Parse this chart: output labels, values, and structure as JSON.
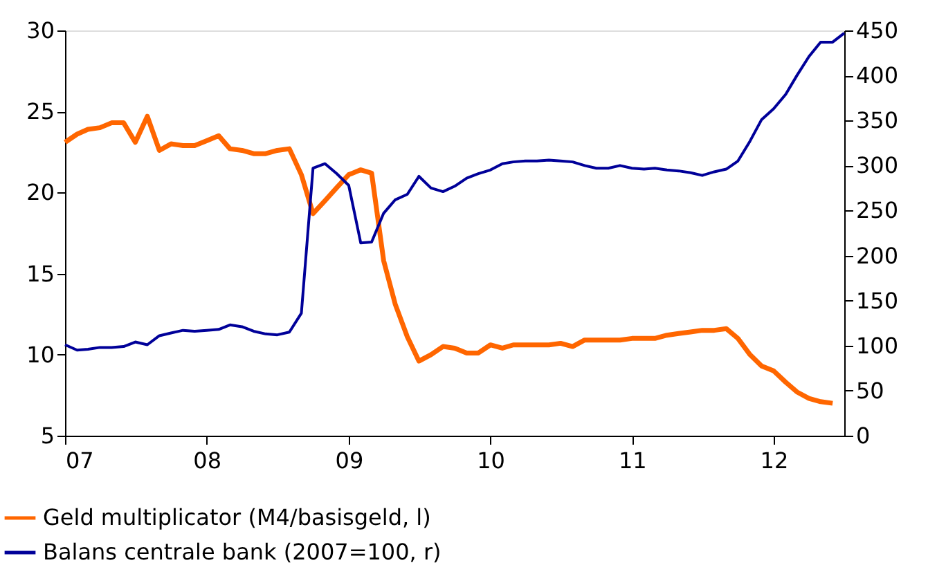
{
  "chart_data": {
    "type": "line",
    "x": [
      "2007-01",
      "2007-02",
      "2007-03",
      "2007-04",
      "2007-05",
      "2007-06",
      "2007-07",
      "2007-08",
      "2007-09",
      "2007-10",
      "2007-11",
      "2007-12",
      "2008-01",
      "2008-02",
      "2008-03",
      "2008-04",
      "2008-05",
      "2008-06",
      "2008-07",
      "2008-08",
      "2008-09",
      "2008-10",
      "2008-11",
      "2008-12",
      "2009-01",
      "2009-02",
      "2009-03",
      "2009-04",
      "2009-05",
      "2009-06",
      "2009-07",
      "2009-08",
      "2009-09",
      "2009-10",
      "2009-11",
      "2009-12",
      "2010-01",
      "2010-02",
      "2010-03",
      "2010-04",
      "2010-05",
      "2010-06",
      "2010-07",
      "2010-08",
      "2010-09",
      "2010-10",
      "2010-11",
      "2010-12",
      "2011-01",
      "2011-02",
      "2011-03",
      "2011-04",
      "2011-05",
      "2011-06",
      "2011-07",
      "2011-08",
      "2011-09",
      "2011-10",
      "2011-11",
      "2011-12",
      "2012-01",
      "2012-02",
      "2012-03",
      "2012-04",
      "2012-05",
      "2012-06",
      "2012-07"
    ],
    "series": [
      {
        "name": "Geld multiplicator (M4/basisgeld, l)",
        "color": "#ff6600",
        "values": [
          23.1,
          23.6,
          23.9,
          24.0,
          24.3,
          24.3,
          23.1,
          24.7,
          22.6,
          23.0,
          22.9,
          22.9,
          23.2,
          23.5,
          22.7,
          22.6,
          22.4,
          22.4,
          22.6,
          22.7,
          21.1,
          18.7,
          19.5,
          20.3,
          21.1,
          21.4,
          21.2,
          15.8,
          13.1,
          11.1,
          9.6,
          10.0,
          10.5,
          10.4,
          10.1,
          10.1,
          10.6,
          10.4,
          10.6,
          10.6,
          10.6,
          10.6,
          10.7,
          10.5,
          10.9,
          10.9,
          10.9,
          10.9,
          11.0,
          11.0,
          11.0,
          11.2,
          11.3,
          11.4,
          11.5,
          11.5,
          11.6,
          11.0,
          10.0,
          9.3,
          9.0,
          8.3,
          7.7,
          7.3,
          7.1,
          7.0,
          null
        ]
      },
      {
        "name": "Balans centrale bank (2007=100, r)",
        "color": "#000099",
        "axis": "y2",
        "values": [
          101,
          95,
          96,
          98,
          98,
          99,
          104,
          101,
          111,
          114,
          117,
          116,
          117,
          118,
          123,
          121,
          116,
          113,
          112,
          115,
          136,
          297,
          302,
          291,
          278,
          214,
          215,
          247,
          262,
          268,
          288,
          275,
          271,
          277,
          286,
          291,
          295,
          302,
          304,
          305,
          305,
          306,
          305,
          304,
          300,
          297,
          297,
          300,
          297,
          296,
          297,
          295,
          294,
          292,
          289,
          293,
          296,
          305,
          327,
          351,
          363,
          379,
          400,
          421,
          437,
          437,
          447
        ]
      }
    ],
    "xlim": [
      "2007-01",
      "2012-07"
    ],
    "xticks": [
      {
        "value": "2007",
        "label": "07"
      },
      {
        "value": "2008",
        "label": "08"
      },
      {
        "value": "2009",
        "label": "09"
      },
      {
        "value": "2010",
        "label": "10"
      },
      {
        "value": "2011",
        "label": "11"
      },
      {
        "value": "2012",
        "label": "12"
      }
    ],
    "ylim": [
      5,
      30
    ],
    "yticks": [
      5,
      10,
      15,
      20,
      25,
      30
    ],
    "y2lim": [
      0,
      450
    ],
    "y2ticks": [
      0,
      50,
      100,
      150,
      200,
      250,
      300,
      350,
      400,
      450
    ],
    "legend": "bottom",
    "grid": false,
    "marker": "none",
    "line_style": "solid"
  }
}
